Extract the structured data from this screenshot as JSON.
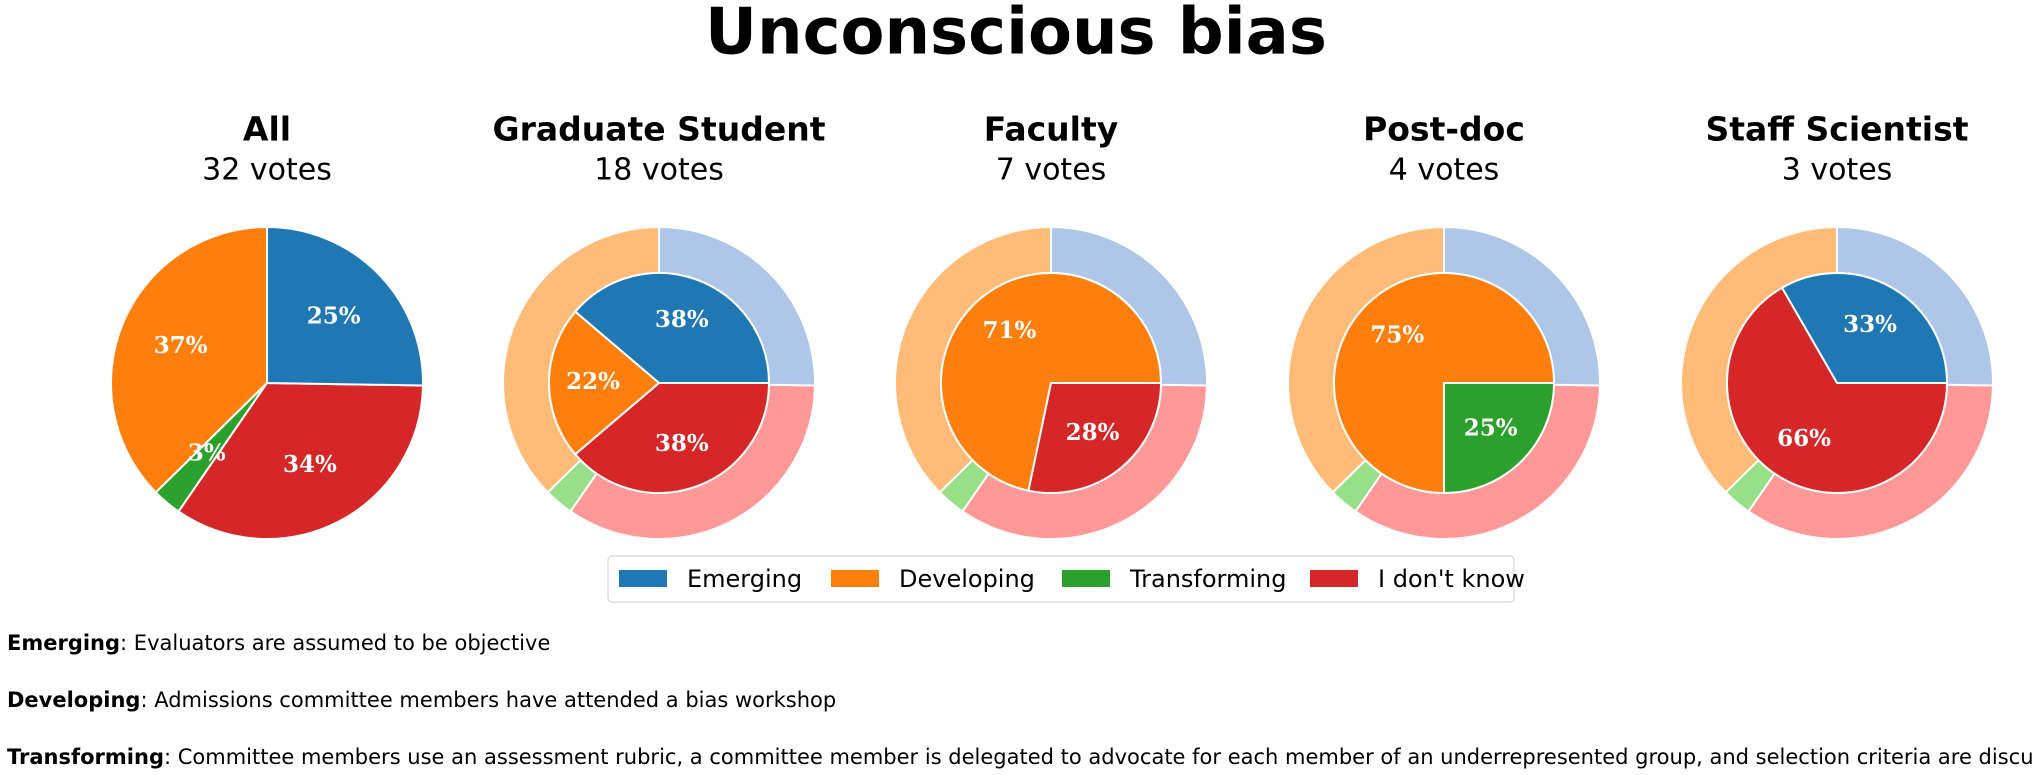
{
  "title": "Unconscious bias",
  "chart_data": [
    {
      "type": "pie",
      "title": "All",
      "subtitle": "32 votes",
      "values": [
        25,
        37,
        3,
        34
      ],
      "value_labels": [
        "25%",
        "37%",
        "3%",
        "34%"
      ]
    },
    {
      "type": "nested-pie",
      "title": "Graduate Student",
      "subtitle": "18 votes",
      "values": [
        38,
        22,
        0,
        38
      ],
      "value_labels": [
        "38%",
        "22%",
        null,
        "38%"
      ]
    },
    {
      "type": "nested-pie",
      "title": "Faculty",
      "subtitle": "7 votes",
      "values": [
        0,
        71,
        0,
        28
      ],
      "value_labels": [
        null,
        "71%",
        null,
        "28%"
      ]
    },
    {
      "type": "nested-pie",
      "title": "Post-doc",
      "subtitle": "4 votes",
      "values": [
        0,
        75,
        25,
        0
      ],
      "value_labels": [
        null,
        "75%",
        "25%",
        null
      ]
    },
    {
      "type": "nested-pie",
      "title": "Staff Scientist",
      "subtitle": "3 votes",
      "values": [
        33,
        0,
        0,
        66
      ],
      "value_labels": [
        "33%",
        null,
        null,
        "66%"
      ]
    }
  ],
  "legend": {
    "categories": [
      "Emerging",
      "Developing",
      "Transforming",
      "I don't know"
    ],
    "colors": [
      "#1f77b4",
      "#ff7f0e",
      "#2ca02c",
      "#d62728"
    ],
    "outer_colors": [
      "#aec7e8",
      "#ffbb78",
      "#98df8a",
      "#ff9896"
    ]
  },
  "notes": [
    {
      "term": "Emerging",
      "text": ": Evaluators are assumed to be objective"
    },
    {
      "term": "Developing",
      "text": ": Admissions committee members have attended a bias workshop"
    },
    {
      "term": "Transforming",
      "text": ": Committee members use an assessment rubric, a committee member is delegated to advocate for each member of an underrepresented group, and selection criteria are discussed in advance"
    }
  ]
}
